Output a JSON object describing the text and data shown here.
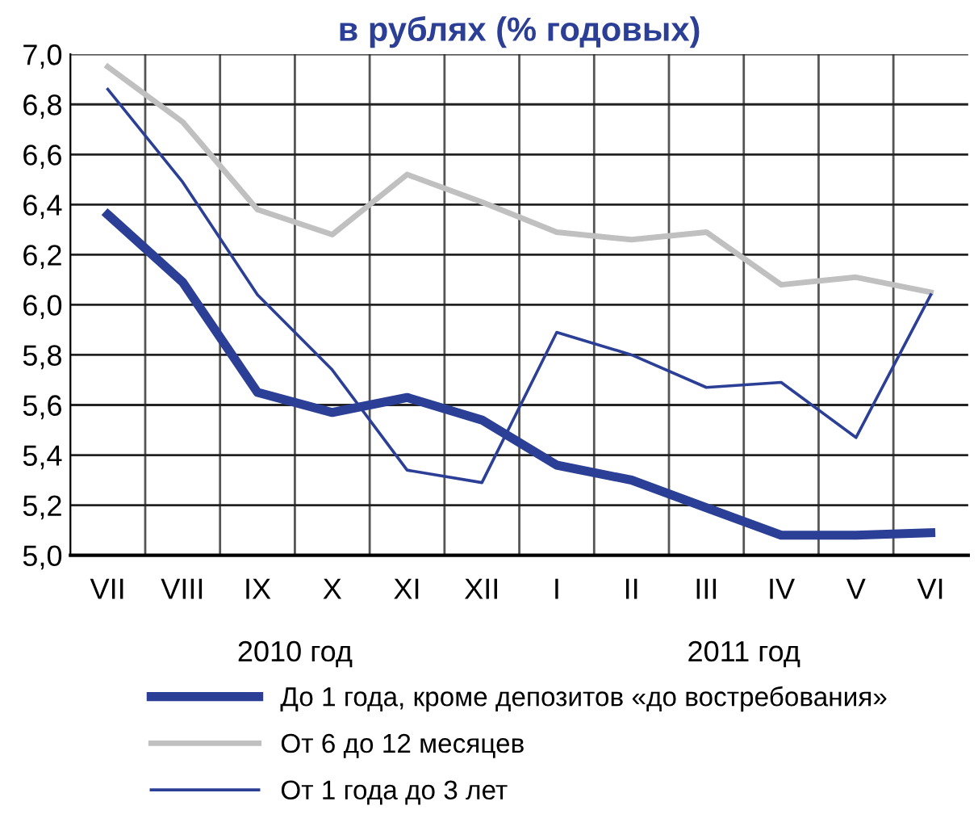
{
  "chart_data": {
    "type": "line",
    "title": "в рублях (% годовых)",
    "categories": [
      "VII",
      "VIII",
      "IX",
      "X",
      "XI",
      "XII",
      "I",
      "II",
      "III",
      "IV",
      "V",
      "VI"
    ],
    "series": [
      {
        "name": "До 1 года, кроме депозитов «до востребования»",
        "color": "#2b3f96",
        "values": [
          6.36,
          6.09,
          5.65,
          5.57,
          5.63,
          5.54,
          5.36,
          5.3,
          5.19,
          5.08,
          5.08,
          5.09
        ]
      },
      {
        "name": "От 6 до 12 месяцев",
        "color": "#c0c0c0",
        "values": [
          6.95,
          6.73,
          6.38,
          6.28,
          6.52,
          6.41,
          6.29,
          6.26,
          6.29,
          6.08,
          6.11,
          6.05
        ]
      },
      {
        "name": "От 1 года до 3 лет",
        "color": "#2b3f96",
        "values": [
          6.86,
          6.49,
          6.04,
          5.74,
          5.34,
          5.29,
          5.89,
          5.8,
          5.67,
          5.69,
          5.47,
          6.04
        ]
      }
    ],
    "ylim": [
      5.0,
      7.0
    ],
    "yticks": [
      {
        "value": 5.0,
        "label": "5,0"
      },
      {
        "value": 5.2,
        "label": "5,2"
      },
      {
        "value": 5.4,
        "label": "5,4"
      },
      {
        "value": 5.6,
        "label": "5,6"
      },
      {
        "value": 5.8,
        "label": "5,8"
      },
      {
        "value": 6.0,
        "label": "6,0"
      },
      {
        "value": 6.2,
        "label": "6,2"
      },
      {
        "value": 6.4,
        "label": "6,4"
      },
      {
        "value": 6.6,
        "label": "6,6"
      },
      {
        "value": 6.8,
        "label": "6,8"
      },
      {
        "value": 7.0,
        "label": "7,0"
      }
    ],
    "annotations": [
      "2010 год",
      "2011 год"
    ],
    "grid": true,
    "legend": "bottom",
    "marker": "none",
    "line_style": "solid"
  }
}
